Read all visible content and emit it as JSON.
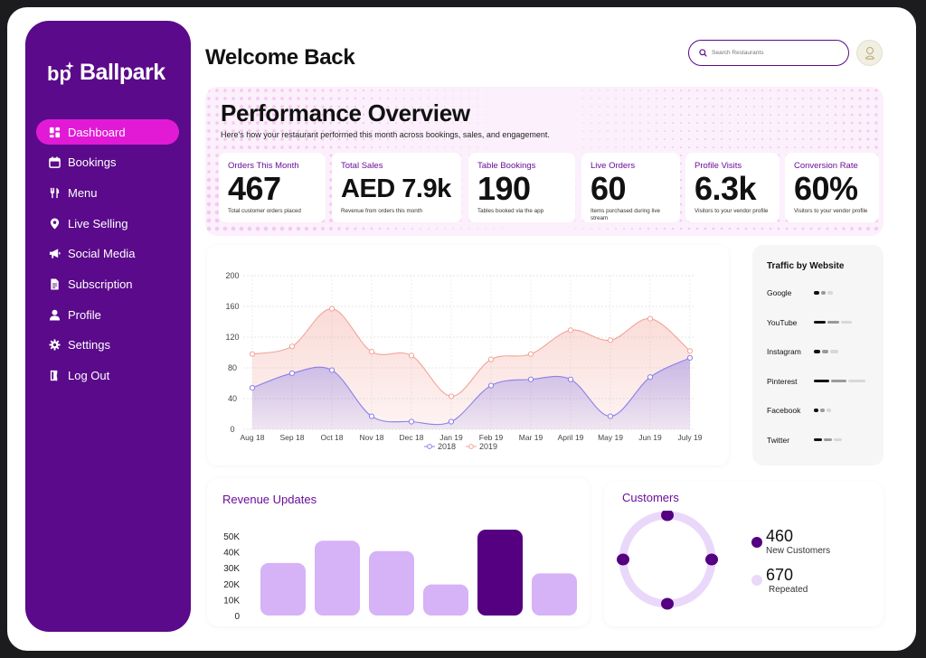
{
  "brand": {
    "name": "Ballpark",
    "mark": "bp",
    "accent": "#5a0a8a",
    "highlight": "#e21ad6"
  },
  "sidebar": {
    "items": [
      {
        "label": "Dashboard",
        "icon": "dashboard-icon",
        "active": true
      },
      {
        "label": "Bookings",
        "icon": "calendar-icon"
      },
      {
        "label": "Menu",
        "icon": "utensils-icon"
      },
      {
        "label": "Live Selling",
        "icon": "location-pin-icon"
      },
      {
        "label": "Social Media",
        "icon": "megaphone-icon"
      },
      {
        "label": "Subscription",
        "icon": "document-icon"
      },
      {
        "label": "Profile",
        "icon": "user-icon"
      },
      {
        "label": "Settings",
        "icon": "gear-icon"
      },
      {
        "label": "Log Out",
        "icon": "logout-icon"
      }
    ]
  },
  "header": {
    "title": "Welcome Back",
    "search_placeholder": "Search Restaurants"
  },
  "performance": {
    "title": "Performance Overview",
    "subtitle": "Here's how your restaurant performed this month across bookings, sales, and engagement.",
    "stats": [
      {
        "label": "Orders This Month",
        "value": "467",
        "desc": "Total customer orders placed"
      },
      {
        "label": "Total Sales",
        "value": "AED 7.9k",
        "desc": "Revenue from orders this month"
      },
      {
        "label": "Table Bookings",
        "value": "190",
        "desc": "Tables booked via the app"
      },
      {
        "label": "Live Orders",
        "value": "60",
        "desc": "Items purchased during live stream"
      },
      {
        "label": "Profile Visits",
        "value": "6.3k",
        "desc": "Visitors to your vendor profile"
      },
      {
        "label": "Conversion Rate",
        "value": "60%",
        "desc": "Visitors to your vendor profile"
      }
    ]
  },
  "chart_data": [
    {
      "type": "area",
      "categories": [
        "Aug 18",
        "Sep 18",
        "Oct 18",
        "Nov 18",
        "Dec 18",
        "Jan 19",
        "Feb 19",
        "Mar 19",
        "April 19",
        "May 19",
        "Jun 19",
        "July 19"
      ],
      "series": [
        {
          "name": "2018",
          "color": "#8b7fe8",
          "values": [
            54,
            73,
            77,
            17,
            10,
            10,
            57,
            65,
            65,
            17,
            68,
            93
          ]
        },
        {
          "name": "2019",
          "color": "#f2a49a",
          "values": [
            98,
            108,
            157,
            101,
            96,
            43,
            91,
            98,
            129,
            116,
            144,
            102
          ]
        }
      ],
      "yticks": [
        "0",
        "40",
        "80",
        "120",
        "160",
        "200"
      ],
      "ylim": [
        0,
        200
      ],
      "grid": true,
      "legend": "bottom"
    },
    {
      "type": "bar",
      "title": "Revenue Updates",
      "yticks": [
        "0",
        "10K",
        "20K",
        "30K",
        "40K",
        "50K"
      ],
      "ylim": [
        0,
        50000
      ],
      "values": [
        33000,
        47000,
        40500,
        19500,
        54000,
        26500
      ],
      "highlight_index": 4,
      "colors": {
        "bar": "#d6b2f7",
        "highlight": "#540080"
      }
    }
  ],
  "traffic": {
    "title": "Traffic by Website",
    "sites": [
      {
        "name": "Google",
        "bars": [
          6,
          5,
          6
        ]
      },
      {
        "name": "YouTube",
        "bars": [
          13,
          13,
          12
        ]
      },
      {
        "name": "Instagram",
        "bars": [
          7,
          7,
          9
        ]
      },
      {
        "name": "Pinterest",
        "bars": [
          17,
          17,
          19
        ]
      },
      {
        "name": "Facebook",
        "bars": [
          5,
          5,
          5
        ]
      },
      {
        "name": "Twitter",
        "bars": [
          9,
          9,
          9
        ]
      }
    ]
  },
  "customers": {
    "title": "Customers",
    "new": {
      "value": "460",
      "label": "New Customers",
      "color": "#540080"
    },
    "repeated": {
      "value": "670",
      "label": "Repeated",
      "color": "#ead8fb"
    }
  }
}
